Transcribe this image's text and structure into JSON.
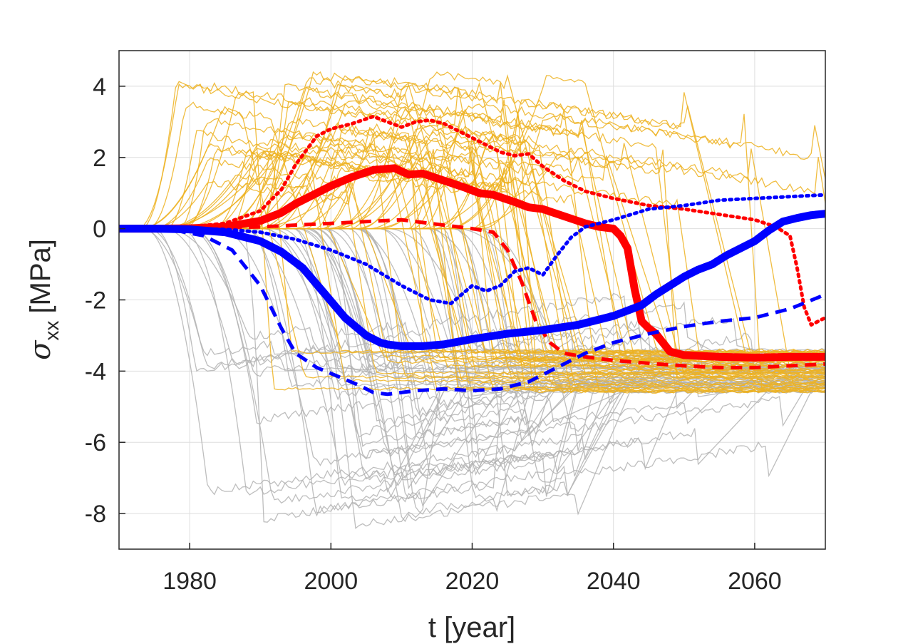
{
  "chart_data": {
    "type": "line",
    "xlabel": "t [year]",
    "ylabel_symbol": "σ",
    "ylabel_subscript": "xx",
    "ylabel_unit": "[MPa]",
    "xlim": [
      1970,
      2070
    ],
    "ylim": [
      -9,
      5
    ],
    "xticks": [
      1980,
      2000,
      2020,
      2040,
      2060
    ],
    "yticks": [
      4,
      2,
      0,
      -2,
      -4,
      -6,
      -8
    ],
    "grid": true,
    "colors": {
      "red": "#ff0000",
      "blue": "#0000ff",
      "orange_ensemble": "#edb120",
      "gray_ensemble": "#b3b3b3",
      "grid": "#dedede",
      "axes": "#262626"
    },
    "series": [
      {
        "color": "red",
        "style": "solid",
        "width": 11,
        "x": [
          1970,
          1975,
          1980,
          1985,
          1990,
          1993,
          1995,
          1998,
          2000,
          2003,
          2006,
          2009,
          2011,
          2013,
          2016,
          2019,
          2021,
          2023,
          2026,
          2028,
          2030,
          2033,
          2036,
          2038,
          2040,
          2041,
          2042,
          2043,
          2044,
          2045,
          2046,
          2047,
          2048,
          2050,
          2055,
          2060,
          2065,
          2070
        ],
        "y": [
          0,
          0,
          0.01,
          0.05,
          0.22,
          0.45,
          0.7,
          1.0,
          1.2,
          1.45,
          1.65,
          1.7,
          1.52,
          1.55,
          1.35,
          1.15,
          1.0,
          0.95,
          0.75,
          0.6,
          0.55,
          0.35,
          0.15,
          0.05,
          0.0,
          -0.2,
          -0.55,
          -1.7,
          -2.6,
          -2.8,
          -2.95,
          -3.2,
          -3.45,
          -3.55,
          -3.6,
          -3.62,
          -3.6,
          -3.6
        ]
      },
      {
        "color": "red",
        "style": "dotted",
        "width": 5,
        "x": [
          1970,
          1975,
          1980,
          1985,
          1990,
          1993,
          1995,
          1998,
          2000,
          2003,
          2006,
          2008,
          2010,
          2012,
          2014,
          2016,
          2018,
          2020,
          2022,
          2024,
          2026,
          2028,
          2030,
          2033,
          2036,
          2040,
          2045,
          2050,
          2055,
          2060,
          2063,
          2065,
          2066,
          2067,
          2068,
          2070
        ],
        "y": [
          0,
          0.01,
          0.05,
          0.15,
          0.5,
          1.1,
          1.8,
          2.6,
          2.8,
          2.95,
          3.15,
          3.0,
          2.85,
          3.0,
          3.05,
          2.95,
          2.75,
          2.55,
          2.35,
          2.15,
          2.05,
          2.1,
          1.75,
          1.35,
          1.05,
          0.85,
          0.65,
          0.55,
          0.4,
          0.25,
          0.05,
          -0.2,
          -1.1,
          -2.2,
          -2.7,
          -2.5
        ]
      },
      {
        "color": "red",
        "style": "dashed",
        "width": 5,
        "x": [
          1970,
          1980,
          1990,
          2000,
          2010,
          2020,
          2023,
          2025,
          2027,
          2029,
          2031,
          2033,
          2036,
          2040,
          2045,
          2050,
          2055,
          2060,
          2065,
          2070
        ],
        "y": [
          0,
          0,
          0.05,
          0.15,
          0.25,
          0.0,
          -0.1,
          -0.6,
          -1.5,
          -2.6,
          -3.2,
          -3.5,
          -3.6,
          -3.7,
          -3.78,
          -3.85,
          -3.9,
          -3.9,
          -3.85,
          -3.8
        ]
      },
      {
        "color": "blue",
        "style": "solid",
        "width": 11,
        "x": [
          1970,
          1975,
          1980,
          1985,
          1990,
          1993,
          1996,
          1999,
          2002,
          2005,
          2007,
          2008,
          2010,
          2013,
          2016,
          2020,
          2025,
          2030,
          2035,
          2038,
          2040,
          2042,
          2044,
          2046,
          2048,
          2050,
          2052,
          2054,
          2056,
          2058,
          2060,
          2062,
          2064,
          2066,
          2068,
          2070
        ],
        "y": [
          0,
          0,
          -0.02,
          -0.1,
          -0.35,
          -0.65,
          -1.1,
          -1.8,
          -2.5,
          -3.0,
          -3.2,
          -3.25,
          -3.3,
          -3.3,
          -3.25,
          -3.1,
          -2.95,
          -2.85,
          -2.7,
          -2.55,
          -2.45,
          -2.3,
          -2.15,
          -1.85,
          -1.6,
          -1.35,
          -1.15,
          -1.0,
          -0.75,
          -0.55,
          -0.35,
          -0.05,
          0.2,
          0.3,
          0.38,
          0.42
        ]
      },
      {
        "color": "blue",
        "style": "dotted",
        "width": 5,
        "x": [
          1970,
          1980,
          1985,
          1990,
          1995,
          2000,
          2005,
          2010,
          2014,
          2017,
          2020,
          2022,
          2024,
          2026,
          2028,
          2030,
          2032,
          2034,
          2036,
          2040,
          2045,
          2050,
          2055,
          2060,
          2065,
          2070
        ],
        "y": [
          0,
          0,
          -0.02,
          -0.1,
          -0.3,
          -0.6,
          -1.0,
          -1.6,
          -2.0,
          -2.1,
          -1.6,
          -1.75,
          -1.6,
          -1.2,
          -1.1,
          -1.3,
          -0.75,
          -0.25,
          0.05,
          0.25,
          0.55,
          0.65,
          0.8,
          0.85,
          0.9,
          0.95
        ]
      },
      {
        "color": "blue",
        "style": "dashed",
        "width": 5,
        "x": [
          1970,
          1978,
          1982,
          1986,
          1990,
          1993,
          1995,
          1998,
          2001,
          2004,
          2006,
          2008,
          2012,
          2016,
          2020,
          2024,
          2028,
          2032,
          2036,
          2040,
          2045,
          2050,
          2055,
          2060,
          2065,
          2070
        ],
        "y": [
          0,
          -0.05,
          -0.2,
          -0.6,
          -1.6,
          -2.8,
          -3.5,
          -3.9,
          -4.15,
          -4.4,
          -4.6,
          -4.65,
          -4.55,
          -4.5,
          -4.55,
          -4.5,
          -4.3,
          -3.9,
          -3.5,
          -3.2,
          -2.95,
          -2.75,
          -2.6,
          -2.5,
          -2.25,
          -1.85
        ]
      }
    ]
  }
}
